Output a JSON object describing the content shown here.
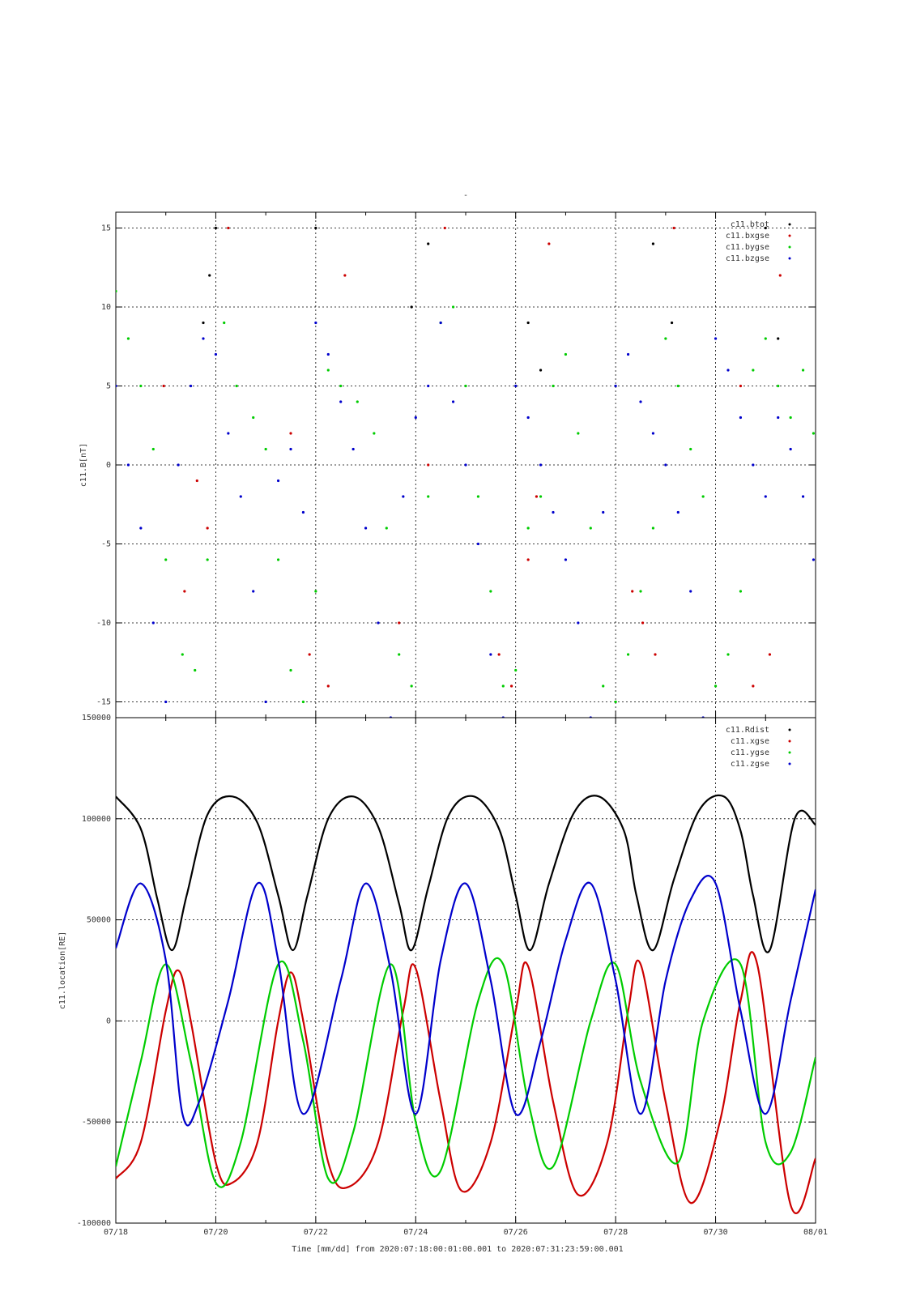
{
  "figure": {
    "title": "-",
    "time_label": "Time [mm/dd]  from 2020:07:18:00:01:00.001  to  2020:07:31:23:59:00.001"
  },
  "colors": {
    "black": "#000000",
    "red": "#cc0000",
    "green": "#00cc00",
    "blue": "#0000cc"
  },
  "x_axis": {
    "start": "2020-07-18",
    "end": "2020-08-01",
    "ticks": [
      {
        "date": "2020-07-18",
        "label": "07/18"
      },
      {
        "date": "2020-07-20",
        "label": "07/20"
      },
      {
        "date": "2020-07-22",
        "label": "07/22"
      },
      {
        "date": "2020-07-24",
        "label": "07/24"
      },
      {
        "date": "2020-07-26",
        "label": "07/26"
      },
      {
        "date": "2020-07-28",
        "label": "07/28"
      },
      {
        "date": "2020-07-30",
        "label": "07/30"
      },
      {
        "date": "2020-08-01",
        "label": "08/01"
      }
    ]
  },
  "chart_data": [
    {
      "type": "scatter",
      "ylabel": "c11.B[nT]",
      "ylim": [
        -16,
        16
      ],
      "yticks": [
        15,
        10,
        5,
        0,
        -5,
        -10,
        -15
      ],
      "grid": true,
      "legend_position": "top-right",
      "series": [
        {
          "name": "c11.btot",
          "color": "#000000",
          "x": [
            "2020-07-19T18:00",
            "2020-07-19T21:00",
            "2020-07-20T00:00",
            "2020-07-22T00:00",
            "2020-07-23T22:00",
            "2020-07-24T06:00",
            "2020-07-26T06:00",
            "2020-07-26T12:00",
            "2020-07-28T18:00",
            "2020-07-29T03:00",
            "2020-07-31T00:00",
            "2020-07-31T06:00"
          ],
          "y": [
            9,
            12,
            15,
            15,
            10,
            14,
            9,
            6,
            14,
            9,
            15,
            8
          ]
        },
        {
          "name": "c11.bxgse",
          "color": "#cc0000",
          "x": [
            "2020-07-18T23:00",
            "2020-07-19T09:00",
            "2020-07-19T15:00",
            "2020-07-19T20:00",
            "2020-07-20T06:00",
            "2020-07-21T12:00",
            "2020-07-21T21:00",
            "2020-07-22T06:00",
            "2020-07-22T14:00",
            "2020-07-23T16:00",
            "2020-07-24T06:00",
            "2020-07-24T14:00",
            "2020-07-25T16:00",
            "2020-07-25T22:00",
            "2020-07-26T06:00",
            "2020-07-26T10:00",
            "2020-07-26T16:00",
            "2020-07-28T08:00",
            "2020-07-28T13:00",
            "2020-07-28T19:00",
            "2020-07-29T04:00",
            "2020-07-30T12:00",
            "2020-07-30T18:00",
            "2020-07-31T02:00",
            "2020-07-31T07:00"
          ],
          "y": [
            5,
            -8,
            -1,
            -4,
            15,
            2,
            -12,
            -14,
            12,
            -10,
            0,
            15,
            -12,
            -14,
            -6,
            -2,
            14,
            -8,
            -10,
            -12,
            15,
            5,
            -14,
            -12,
            12
          ]
        },
        {
          "name": "c11.bygse",
          "color": "#00cc00",
          "x": [
            "2020-07-18T00:00",
            "2020-07-18T06:00",
            "2020-07-18T12:00",
            "2020-07-18T18:00",
            "2020-07-19T00:00",
            "2020-07-19T08:00",
            "2020-07-19T14:00",
            "2020-07-19T20:00",
            "2020-07-20T04:00",
            "2020-07-20T10:00",
            "2020-07-20T18:00",
            "2020-07-21T00:00",
            "2020-07-21T06:00",
            "2020-07-21T12:00",
            "2020-07-21T18:00",
            "2020-07-22T00:00",
            "2020-07-22T06:00",
            "2020-07-22T12:00",
            "2020-07-22T20:00",
            "2020-07-23T04:00",
            "2020-07-23T10:00",
            "2020-07-23T16:00",
            "2020-07-23T22:00",
            "2020-07-24T06:00",
            "2020-07-24T12:00",
            "2020-07-24T18:00",
            "2020-07-25T00:00",
            "2020-07-25T06:00",
            "2020-07-25T12:00",
            "2020-07-25T18:00",
            "2020-07-26T00:00",
            "2020-07-26T06:00",
            "2020-07-26T12:00",
            "2020-07-26T18:00",
            "2020-07-27T00:00",
            "2020-07-27T06:00",
            "2020-07-27T12:00",
            "2020-07-27T18:00",
            "2020-07-28T00:00",
            "2020-07-28T06:00",
            "2020-07-28T12:00",
            "2020-07-28T18:00",
            "2020-07-29T00:00",
            "2020-07-29T06:00",
            "2020-07-29T12:00",
            "2020-07-29T18:00",
            "2020-07-30T00:00",
            "2020-07-30T06:00",
            "2020-07-30T12:00",
            "2020-07-30T18:00",
            "2020-07-31T00:00",
            "2020-07-31T06:00",
            "2020-07-31T12:00",
            "2020-07-31T18:00",
            "2020-07-31T23:00"
          ],
          "y": [
            11,
            8,
            5,
            1,
            -6,
            -12,
            -13,
            -6,
            9,
            5,
            3,
            1,
            -6,
            -13,
            -15,
            -8,
            6,
            5,
            4,
            2,
            -4,
            -12,
            -14,
            -2,
            9,
            10,
            5,
            -2,
            -8,
            -14,
            -13,
            -4,
            -2,
            5,
            7,
            2,
            -4,
            -14,
            -15,
            -12,
            -8,
            -4,
            8,
            5,
            1,
            -2,
            -14,
            -12,
            -8,
            6,
            8,
            5,
            3,
            6,
            2
          ]
        },
        {
          "name": "c11.bzgse",
          "color": "#0000cc",
          "x": [
            "2020-07-18T00:00",
            "2020-07-18T06:00",
            "2020-07-18T12:00",
            "2020-07-18T18:00",
            "2020-07-19T00:00",
            "2020-07-19T06:00",
            "2020-07-19T12:00",
            "2020-07-19T18:00",
            "2020-07-20T00:00",
            "2020-07-20T06:00",
            "2020-07-20T12:00",
            "2020-07-20T18:00",
            "2020-07-21T00:00",
            "2020-07-21T06:00",
            "2020-07-21T12:00",
            "2020-07-21T18:00",
            "2020-07-22T00:00",
            "2020-07-22T06:00",
            "2020-07-22T12:00",
            "2020-07-22T18:00",
            "2020-07-23T00:00",
            "2020-07-23T06:00",
            "2020-07-23T12:00",
            "2020-07-23T18:00",
            "2020-07-24T00:00",
            "2020-07-24T06:00",
            "2020-07-24T12:00",
            "2020-07-24T18:00",
            "2020-07-25T00:00",
            "2020-07-25T06:00",
            "2020-07-25T12:00",
            "2020-07-25T18:00",
            "2020-07-26T00:00",
            "2020-07-26T06:00",
            "2020-07-26T12:00",
            "2020-07-26T18:00",
            "2020-07-27T00:00",
            "2020-07-27T06:00",
            "2020-07-27T12:00",
            "2020-07-27T18:00",
            "2020-07-28T00:00",
            "2020-07-28T06:00",
            "2020-07-28T12:00",
            "2020-07-28T18:00",
            "2020-07-29T00:00",
            "2020-07-29T06:00",
            "2020-07-29T12:00",
            "2020-07-29T18:00",
            "2020-07-30T00:00",
            "2020-07-30T06:00",
            "2020-07-30T12:00",
            "2020-07-30T18:00",
            "2020-07-31T00:00",
            "2020-07-31T06:00",
            "2020-07-31T12:00",
            "2020-07-31T18:00",
            "2020-07-31T23:00"
          ],
          "y": [
            5,
            0,
            -4,
            -10,
            -15,
            0,
            5,
            8,
            7,
            2,
            -2,
            -8,
            -15,
            -1,
            1,
            -3,
            9,
            7,
            4,
            1,
            -4,
            -10,
            -16,
            -2,
            3,
            5,
            9,
            4,
            0,
            -5,
            -12,
            -16,
            5,
            3,
            0,
            -3,
            -6,
            -10,
            -16,
            -3,
            5,
            7,
            4,
            2,
            0,
            -3,
            -8,
            -16,
            8,
            6,
            3,
            0,
            -2,
            3,
            1,
            -2,
            -6
          ]
        }
      ]
    },
    {
      "type": "line",
      "ylabel": "c11.location[RE]",
      "ylim": [
        -100000,
        150000
      ],
      "yticks": [
        150000,
        100000,
        50000,
        0,
        -50000,
        -100000
      ],
      "grid": true,
      "legend_position": "top-right",
      "series": [
        {
          "name": "c11.Rdist",
          "color": "#000000",
          "x": [
            "2020-07-18",
            "2020-07-18T12:00",
            "2020-07-18T20:00",
            "2020-07-19T03:00",
            "2020-07-19T10:00",
            "2020-07-19T20:00",
            "2020-07-20T08:00",
            "2020-07-20T20:00",
            "2020-07-21T06:00",
            "2020-07-21T13:00",
            "2020-07-21T20:00",
            "2020-07-22T06:00",
            "2020-07-22T18:00",
            "2020-07-23T06:00",
            "2020-07-23T16:00",
            "2020-07-23T22:00",
            "2020-07-24T06:00",
            "2020-07-24T16:00",
            "2020-07-25T04:00",
            "2020-07-25T16:00",
            "2020-07-26T00:00",
            "2020-07-26T07:00",
            "2020-07-26T16:00",
            "2020-07-27T04:00",
            "2020-07-27T16:00",
            "2020-07-28T04:00",
            "2020-07-28T10:00",
            "2020-07-28T18:00",
            "2020-07-29T04:00",
            "2020-07-29T16:00",
            "2020-07-30T04:00",
            "2020-07-30T12:00",
            "2020-07-30T18:00",
            "2020-07-31T02:00",
            "2020-07-31T14:00",
            "2020-08-01"
          ],
          "y": [
            111000,
            95000,
            60000,
            35000,
            62000,
            102000,
            111000,
            98000,
            62000,
            35000,
            62000,
            100000,
            111000,
            96000,
            58000,
            35000,
            66000,
            102000,
            111000,
            95000,
            62000,
            35000,
            68000,
            103000,
            111000,
            94000,
            62000,
            35000,
            70000,
            104000,
            111000,
            94000,
            62000,
            35000,
            100000,
            97000
          ]
        },
        {
          "name": "c11.xgse",
          "color": "#cc0000",
          "x": [
            "2020-07-18",
            "2020-07-18T12:00",
            "2020-07-19T00:00",
            "2020-07-19T06:00",
            "2020-07-19T12:00",
            "2020-07-20T00:00",
            "2020-07-20T08:00",
            "2020-07-20T20:00",
            "2020-07-21T06:00",
            "2020-07-21T12:00",
            "2020-07-21T18:00",
            "2020-07-22T06:00",
            "2020-07-22T16:00",
            "2020-07-23T06:00",
            "2020-07-23T18:00",
            "2020-07-24T00:00",
            "2020-07-24T12:00",
            "2020-07-24T22:00",
            "2020-07-25T12:00",
            "2020-07-26T00:00",
            "2020-07-26T06:00",
            "2020-07-26T18:00",
            "2020-07-27T06:00",
            "2020-07-27T20:00",
            "2020-07-28T06:00",
            "2020-07-28T12:00",
            "2020-07-29T00:00",
            "2020-07-29T12:00",
            "2020-07-30T02:00",
            "2020-07-30T12:00",
            "2020-07-30T20:00",
            "2020-07-31T12:00",
            "2020-08-01"
          ],
          "y": [
            -78000,
            -60000,
            5000,
            25000,
            0,
            -70000,
            -80000,
            -60000,
            0,
            24000,
            0,
            -70000,
            -82000,
            -60000,
            5000,
            26000,
            -40000,
            -84000,
            -60000,
            5000,
            27000,
            -40000,
            -86000,
            -60000,
            5000,
            28000,
            -40000,
            -90000,
            -50000,
            10000,
            28000,
            -91000,
            -68000
          ]
        },
        {
          "name": "c11.ygse",
          "color": "#00cc00",
          "x": [
            "2020-07-18",
            "2020-07-18T12:00",
            "2020-07-19T00:00",
            "2020-07-19T12:00",
            "2020-07-20T00:00",
            "2020-07-20T12:00",
            "2020-07-21T06:00",
            "2020-07-21T18:00",
            "2020-07-22T06:00",
            "2020-07-22T18:00",
            "2020-07-23T12:00",
            "2020-07-24T00:00",
            "2020-07-24T12:00",
            "2020-07-25T06:00",
            "2020-07-25T18:00",
            "2020-07-26T06:00",
            "2020-07-26T18:00",
            "2020-07-27T12:00",
            "2020-07-28T00:00",
            "2020-07-28T12:00",
            "2020-07-29T06:00",
            "2020-07-29T18:00",
            "2020-07-30T12:00",
            "2020-07-31T00:00",
            "2020-07-31T12:00",
            "2020-08-01"
          ],
          "y": [
            -72000,
            -20000,
            28000,
            -20000,
            -80000,
            -60000,
            28000,
            -10000,
            -78000,
            -55000,
            28000,
            -50000,
            -74000,
            10000,
            28000,
            -40000,
            -72000,
            0,
            28000,
            -30000,
            -70000,
            0,
            28000,
            -60000,
            -65000,
            -18000
          ]
        },
        {
          "name": "c11.zgse",
          "color": "#0000cc",
          "x": [
            "2020-07-18",
            "2020-07-18T12:00",
            "2020-07-19T00:00",
            "2020-07-19T08:00",
            "2020-07-19T16:00",
            "2020-07-20T06:00",
            "2020-07-20T20:00",
            "2020-07-21T06:00",
            "2020-07-21T18:00",
            "2020-07-22T12:00",
            "2020-07-23T00:00",
            "2020-07-23T12:00",
            "2020-07-24T00:00",
            "2020-07-24T12:00",
            "2020-07-25T00:00",
            "2020-07-25T12:00",
            "2020-07-26T00:00",
            "2020-07-26T12:00",
            "2020-07-27T00:00",
            "2020-07-27T12:00",
            "2020-07-28T00:00",
            "2020-07-28T12:00",
            "2020-07-29T00:00",
            "2020-07-29T12:00",
            "2020-07-30T00:00",
            "2020-07-30T12:00",
            "2020-07-31T00:00",
            "2020-07-31T12:00",
            "2020-08-01"
          ],
          "y": [
            36000,
            68000,
            30000,
            -46000,
            -40000,
            10000,
            68000,
            30000,
            -46000,
            20000,
            68000,
            25000,
            -46000,
            30000,
            68000,
            20000,
            -46000,
            -10000,
            40000,
            68000,
            20000,
            -46000,
            20000,
            60000,
            68000,
            5000,
            -46000,
            10000,
            65000
          ]
        }
      ]
    }
  ]
}
